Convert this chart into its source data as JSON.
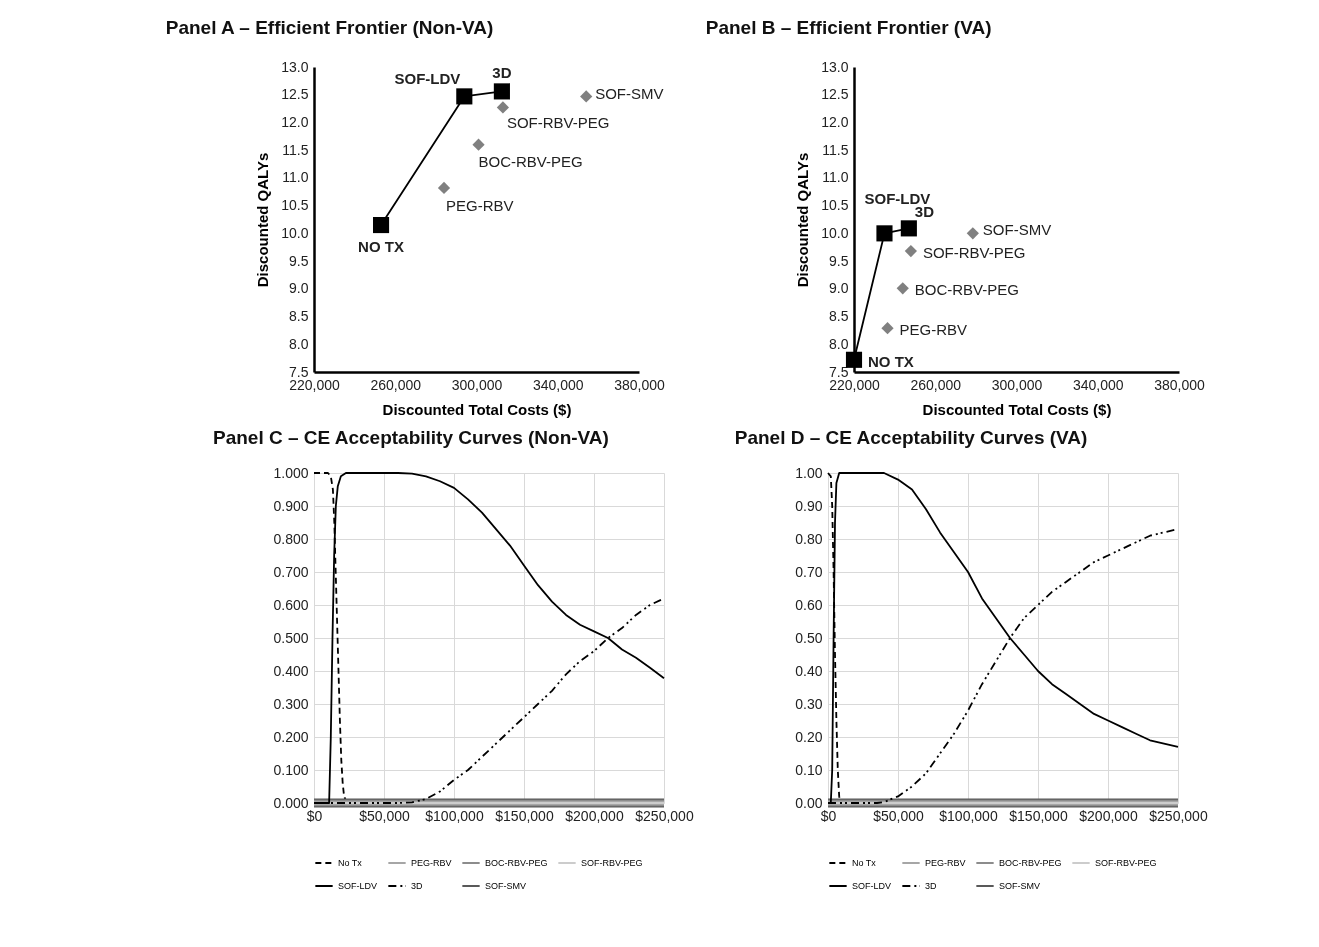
{
  "chart_data": [
    {
      "type": "scatter",
      "title": "Panel A – Efficient Frontier (Non-VA)",
      "xlabel": "Discounted Total Costs ($)",
      "ylabel": "Discounted QALYs",
      "xlim": [
        220000,
        380000
      ],
      "ylim": [
        7.5,
        13
      ],
      "xticks": [
        {
          "value": 220000,
          "label": "220,000"
        },
        {
          "value": 260000,
          "label": "260,000"
        },
        {
          "value": 300000,
          "label": "300,000"
        },
        {
          "value": 340000,
          "label": "340,000"
        },
        {
          "value": 380000,
          "label": "380,000"
        }
      ],
      "yticks": [
        {
          "value": 7.5,
          "label": "7.5"
        },
        {
          "value": 8,
          "label": "8.0"
        },
        {
          "value": 8.5,
          "label": "8.5"
        },
        {
          "value": 9,
          "label": "9.0"
        },
        {
          "value": 9.5,
          "label": "9.5"
        },
        {
          "value": 10,
          "label": "10.0"
        },
        {
          "value": 10.5,
          "label": "10.5"
        },
        {
          "value": 11,
          "label": "11.0"
        },
        {
          "value": 11.5,
          "label": "11.5"
        },
        {
          "value": 12,
          "label": "12.0"
        },
        {
          "value": 12.5,
          "label": "12.5"
        },
        {
          "value": 13,
          "label": "13.0"
        }
      ],
      "series": [
        {
          "type": "line",
          "marker": "square",
          "color": "#000000",
          "x": [
            253000,
            294000,
            312500
          ],
          "values": [
            10.15,
            12.47,
            12.56
          ]
        },
        {
          "type": "scatter",
          "marker": "diamond",
          "color": "#808080",
          "x": [
            313000,
            301000,
            284000,
            354000
          ],
          "values": [
            12.27,
            11.6,
            10.82,
            12.47
          ]
        }
      ],
      "annotations": [
        {
          "text": "NO TX",
          "x": 253000,
          "y": 10.15
        },
        {
          "text": "SOF-LDV",
          "x": 294000,
          "y": 12.47
        },
        {
          "text": "3D",
          "x": 312500,
          "y": 12.56
        },
        {
          "text": "SOF-RBV-PEG",
          "x": 313000,
          "y": 12.27
        },
        {
          "text": "BOC-RBV-PEG",
          "x": 301000,
          "y": 11.6
        },
        {
          "text": "PEG-RBV",
          "x": 284000,
          "y": 10.82
        },
        {
          "text": "SOF-SMV",
          "x": 354000,
          "y": 12.47
        }
      ]
    },
    {
      "type": "scatter",
      "title": "Panel B – Efficient Frontier (VA)",
      "xlabel": "Discounted Total Costs ($)",
      "ylabel": "Discounted QALYs",
      "xlim": [
        220000,
        380000
      ],
      "ylim": [
        7.5,
        13
      ],
      "xticks": [
        {
          "value": 220000,
          "label": "220,000"
        },
        {
          "value": 260000,
          "label": "260,000"
        },
        {
          "value": 300000,
          "label": "300,000"
        },
        {
          "value": 340000,
          "label": "340,000"
        },
        {
          "value": 380000,
          "label": "380,000"
        }
      ],
      "yticks": [
        {
          "value": 7.5,
          "label": "7.5"
        },
        {
          "value": 8,
          "label": "8.0"
        },
        {
          "value": 8.5,
          "label": "8.5"
        },
        {
          "value": 9,
          "label": "9.0"
        },
        {
          "value": 9.5,
          "label": "9.5"
        },
        {
          "value": 10,
          "label": "10.0"
        },
        {
          "value": 10.5,
          "label": "10.5"
        },
        {
          "value": 11,
          "label": "11.0"
        },
        {
          "value": 11.5,
          "label": "11.5"
        },
        {
          "value": 12,
          "label": "12.0"
        },
        {
          "value": 12.5,
          "label": "12.5"
        },
        {
          "value": 13,
          "label": "13.0"
        }
      ],
      "series": [
        {
          "type": "line",
          "marker": "square",
          "color": "#000000",
          "x": [
            220000,
            235000,
            247000
          ],
          "values": [
            7.72,
            10.0,
            10.09
          ]
        },
        {
          "type": "scatter",
          "marker": "diamond",
          "color": "#808080",
          "x": [
            278500,
            248000,
            244000,
            236500
          ],
          "values": [
            10.0,
            9.68,
            9.01,
            8.29
          ]
        }
      ],
      "annotations": [
        {
          "text": "NO TX",
          "x": 220000,
          "y": 7.72
        },
        {
          "text": "SOF-LDV",
          "x": 235000,
          "y": 10.0
        },
        {
          "text": "3D",
          "x": 247000,
          "y": 10.09
        },
        {
          "text": "SOF-SMV",
          "x": 278500,
          "y": 10.0
        },
        {
          "text": "SOF-RBV-PEG",
          "x": 248000,
          "y": 9.68
        },
        {
          "text": "BOC-RBV-PEG",
          "x": 244000,
          "y": 9.01
        },
        {
          "text": "PEG-RBV",
          "x": 236500,
          "y": 8.29
        }
      ]
    },
    {
      "type": "line",
      "title": "Panel C – CE Acceptability Curves (Non-VA)",
      "xlim": [
        0,
        250000
      ],
      "ylim": [
        0,
        1
      ],
      "grid": true,
      "legend": "bottom",
      "xticks": [
        {
          "value": 0,
          "label": "$0"
        },
        {
          "value": 50000,
          "label": "$50,000"
        },
        {
          "value": 100000,
          "label": "$100,000"
        },
        {
          "value": 150000,
          "label": "$150,000"
        },
        {
          "value": 200000,
          "label": "$200,000"
        },
        {
          "value": 250000,
          "label": "$250,000"
        }
      ],
      "yticks": [
        {
          "value": 0,
          "label": "0.000"
        },
        {
          "value": 0.1,
          "label": "0.100"
        },
        {
          "value": 0.2,
          "label": "0.200"
        },
        {
          "value": 0.3,
          "label": "0.300"
        },
        {
          "value": 0.4,
          "label": "0.400"
        },
        {
          "value": 0.5,
          "label": "0.500"
        },
        {
          "value": 0.6,
          "label": "0.600"
        },
        {
          "value": 0.7,
          "label": "0.700"
        },
        {
          "value": 0.8,
          "label": "0.800"
        },
        {
          "value": 0.9,
          "label": "0.900"
        },
        {
          "value": 1,
          "label": "1.000"
        }
      ],
      "series": [
        {
          "name": "No Tx",
          "color": "#000000",
          "line_style": "dashed",
          "x": [
            0,
            10000,
            12000,
            13500,
            14500,
            15500,
            16500,
            17500,
            18500,
            19500,
            20500,
            21500,
            23000,
            25000,
            250000
          ],
          "values": [
            1,
            1,
            0.99,
            0.95,
            0.85,
            0.7,
            0.55,
            0.4,
            0.25,
            0.13,
            0.06,
            0.02,
            0.005,
            0,
            0
          ]
        },
        {
          "name": "PEG-RBV",
          "color": "#a6a6a6",
          "line_style": "solid",
          "x": [
            0,
            250000
          ],
          "values": [
            0,
            0
          ]
        },
        {
          "name": "BOC-RBV-PEG",
          "color": "#8c8c8c",
          "line_style": "solid",
          "x": [
            0,
            250000
          ],
          "values": [
            0,
            0
          ]
        },
        {
          "name": "SOF-RBV-PEG",
          "color": "#cccccc",
          "line_style": "solid",
          "x": [
            0,
            250000
          ],
          "values": [
            0,
            0
          ]
        },
        {
          "name": "SOF-LDV",
          "color": "#000000",
          "line_style": "solid",
          "x": [
            0,
            10800,
            12000,
            13200,
            14400,
            15600,
            17000,
            19200,
            22800,
            60000,
            70000,
            80000,
            90000,
            100000,
            110000,
            120000,
            130000,
            140000,
            150000,
            160000,
            170000,
            180000,
            190000,
            200000,
            210000,
            220000,
            230000,
            240000,
            250000
          ],
          "values": [
            0,
            0,
            0.2,
            0.5,
            0.75,
            0.9,
            0.96,
            0.99,
            1,
            1,
            0.998,
            0.99,
            0.975,
            0.955,
            0.92,
            0.88,
            0.83,
            0.78,
            0.72,
            0.66,
            0.61,
            0.57,
            0.54,
            0.52,
            0.5,
            0.465,
            0.44,
            0.41,
            0.378
          ]
        },
        {
          "name": "3D",
          "color": "#000000",
          "line_style": "dotted",
          "x": [
            0,
            60000,
            70000,
            80000,
            90000,
            100000,
            110000,
            120000,
            130000,
            140000,
            150000,
            160000,
            170000,
            180000,
            190000,
            200000,
            210000,
            220000,
            230000,
            240000,
            250000
          ],
          "values": [
            0,
            0,
            0.002,
            0.012,
            0.035,
            0.07,
            0.1,
            0.14,
            0.18,
            0.22,
            0.26,
            0.3,
            0.34,
            0.39,
            0.43,
            0.46,
            0.5,
            0.53,
            0.57,
            0.6,
            0.62
          ]
        },
        {
          "name": "SOF-SMV",
          "color": "#595959",
          "line_style": "solid",
          "x": [
            0,
            250000
          ],
          "values": [
            0,
            0
          ]
        }
      ]
    },
    {
      "type": "line",
      "title": "Panel D – CE Acceptability Curves (VA)",
      "xlim": [
        0,
        250000
      ],
      "ylim": [
        0,
        1
      ],
      "grid": true,
      "legend": "bottom",
      "xticks": [
        {
          "value": 0,
          "label": "$0"
        },
        {
          "value": 50000,
          "label": "$50,000"
        },
        {
          "value": 100000,
          "label": "$100,000"
        },
        {
          "value": 150000,
          "label": "$150,000"
        },
        {
          "value": 200000,
          "label": "$200,000"
        },
        {
          "value": 250000,
          "label": "$250,000"
        }
      ],
      "yticks": [
        {
          "value": 0,
          "label": "0.00"
        },
        {
          "value": 0.1,
          "label": "0.10"
        },
        {
          "value": 0.2,
          "label": "0.20"
        },
        {
          "value": 0.3,
          "label": "0.30"
        },
        {
          "value": 0.4,
          "label": "0.40"
        },
        {
          "value": 0.5,
          "label": "0.50"
        },
        {
          "value": 0.6,
          "label": "0.60"
        },
        {
          "value": 0.7,
          "label": "0.70"
        },
        {
          "value": 0.8,
          "label": "0.80"
        },
        {
          "value": 0.9,
          "label": "0.90"
        },
        {
          "value": 1,
          "label": "1.00"
        }
      ],
      "series": [
        {
          "name": "No Tx",
          "color": "#000000",
          "line_style": "dashed",
          "x": [
            0,
            2000,
            3000,
            4000,
            5000,
            6000,
            7000,
            8000,
            9000,
            250000
          ],
          "values": [
            1,
            0.99,
            0.9,
            0.7,
            0.45,
            0.25,
            0.1,
            0.02,
            0,
            0
          ]
        },
        {
          "name": "PEG-RBV",
          "color": "#a6a6a6",
          "line_style": "solid",
          "x": [
            0,
            250000
          ],
          "values": [
            0,
            0
          ]
        },
        {
          "name": "BOC-RBV-PEG",
          "color": "#8c8c8c",
          "line_style": "solid",
          "x": [
            0,
            250000
          ],
          "values": [
            0,
            0
          ]
        },
        {
          "name": "SOF-RBV-PEG",
          "color": "#cccccc",
          "line_style": "solid",
          "x": [
            0,
            250000
          ],
          "values": [
            0,
            0
          ]
        },
        {
          "name": "SOF-LDV",
          "color": "#000000",
          "line_style": "solid",
          "x": [
            0,
            2000,
            3000,
            4000,
            5000,
            6000,
            8000,
            40000,
            50000,
            60000,
            70000,
            80000,
            90000,
            100000,
            110000,
            120000,
            130000,
            140000,
            150000,
            160000,
            170000,
            180000,
            190000,
            200000,
            210000,
            220000,
            230000,
            240000,
            250000
          ],
          "values": [
            0,
            0,
            0.1,
            0.5,
            0.85,
            0.97,
            1,
            1,
            0.98,
            0.95,
            0.89,
            0.82,
            0.76,
            0.7,
            0.62,
            0.56,
            0.5,
            0.45,
            0.4,
            0.36,
            0.33,
            0.3,
            0.27,
            0.25,
            0.23,
            0.21,
            0.19,
            0.18,
            0.17
          ]
        },
        {
          "name": "3D",
          "color": "#000000",
          "line_style": "dotted",
          "x": [
            0,
            35000,
            40000,
            50000,
            60000,
            70000,
            80000,
            90000,
            100000,
            110000,
            120000,
            130000,
            140000,
            150000,
            160000,
            170000,
            180000,
            190000,
            200000,
            210000,
            220000,
            230000,
            240000,
            250000
          ],
          "values": [
            0,
            0,
            0.003,
            0.02,
            0.05,
            0.09,
            0.15,
            0.21,
            0.28,
            0.36,
            0.43,
            0.5,
            0.56,
            0.6,
            0.64,
            0.67,
            0.7,
            0.73,
            0.75,
            0.77,
            0.79,
            0.81,
            0.82,
            0.83
          ]
        },
        {
          "name": "SOF-SMV",
          "color": "#595959",
          "line_style": "solid",
          "x": [
            0,
            250000
          ],
          "values": [
            0,
            0
          ]
        }
      ]
    }
  ]
}
